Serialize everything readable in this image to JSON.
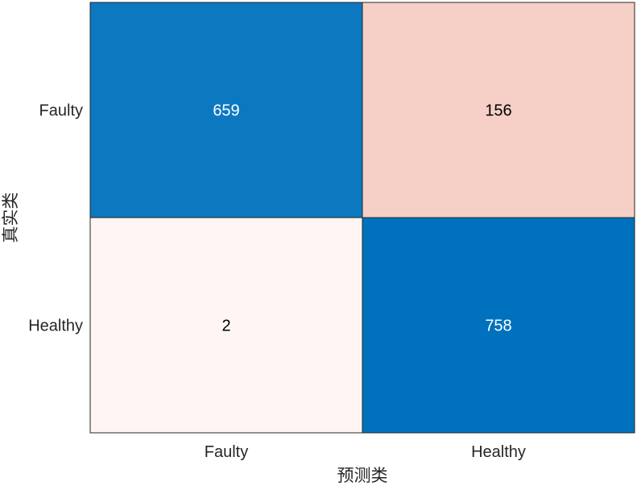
{
  "chart_data": {
    "type": "heatmap",
    "title": "",
    "xlabel": "预测类",
    "ylabel": "真实类",
    "x_categories": [
      "Faulty",
      "Healthy"
    ],
    "y_categories": [
      "Faulty",
      "Healthy"
    ],
    "values": [
      [
        659,
        156
      ],
      [
        2,
        758
      ]
    ],
    "value_labels": [
      [
        "659",
        "156"
      ],
      [
        "2",
        "758"
      ]
    ],
    "colors": {
      "high": "#0072BD",
      "low": "#FFF7F5",
      "negative_tint": "#E3785A",
      "grid": "#262626",
      "light_text": "#FFFFFF",
      "dark_text": "#000000"
    },
    "grid": true,
    "legend": "none"
  }
}
